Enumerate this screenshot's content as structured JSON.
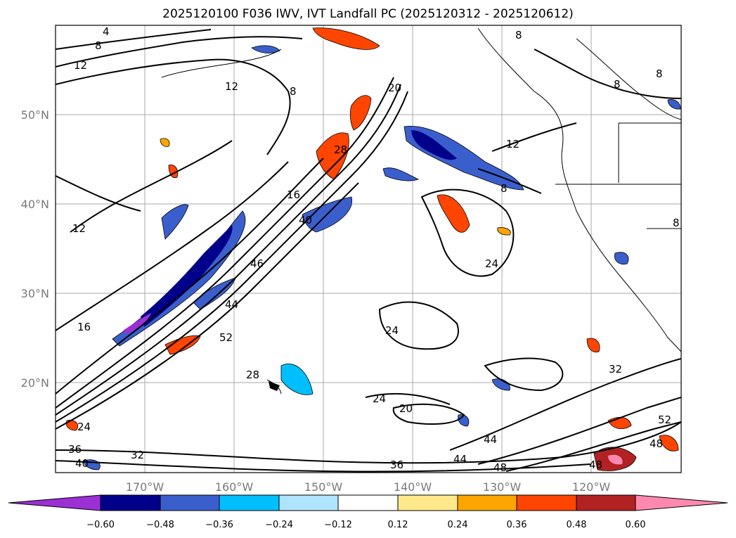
{
  "title": "2025120100 F036 IWV, IVT Landfall PC (2025120312 - 2025120612)",
  "map": {
    "lon_ticks": [
      "170°W",
      "160°W",
      "150°W",
      "140°W",
      "130°W",
      "120°W"
    ],
    "lat_ticks": [
      "50°N",
      "40°N",
      "30°N",
      "20°N"
    ],
    "contour_labels": [
      "4",
      "8",
      "12",
      "8",
      "12",
      "20",
      "28",
      "16",
      "40",
      "46",
      "44",
      "52",
      "12",
      "16",
      "24",
      "24",
      "24",
      "20",
      "28",
      "32",
      "36",
      "40",
      "44",
      "48",
      "48",
      "52",
      "48",
      "8",
      "8",
      "8",
      "8",
      "12",
      "24",
      "32",
      "36",
      "44",
      "8"
    ],
    "gridlines": true
  },
  "colorbar": {
    "ticks": [
      "−0.60",
      "−0.48",
      "−0.36",
      "−0.24",
      "−0.12",
      "0.12",
      "0.24",
      "0.36",
      "0.48",
      "0.60"
    ],
    "colors": [
      "#9b30d4",
      "#00008b",
      "#3a5fcd",
      "#00bfff",
      "#aee4ff",
      "#ffffff",
      "#ffe98a",
      "#ffa500",
      "#ff4500",
      "#b22222",
      "#ff88b0"
    ]
  }
}
